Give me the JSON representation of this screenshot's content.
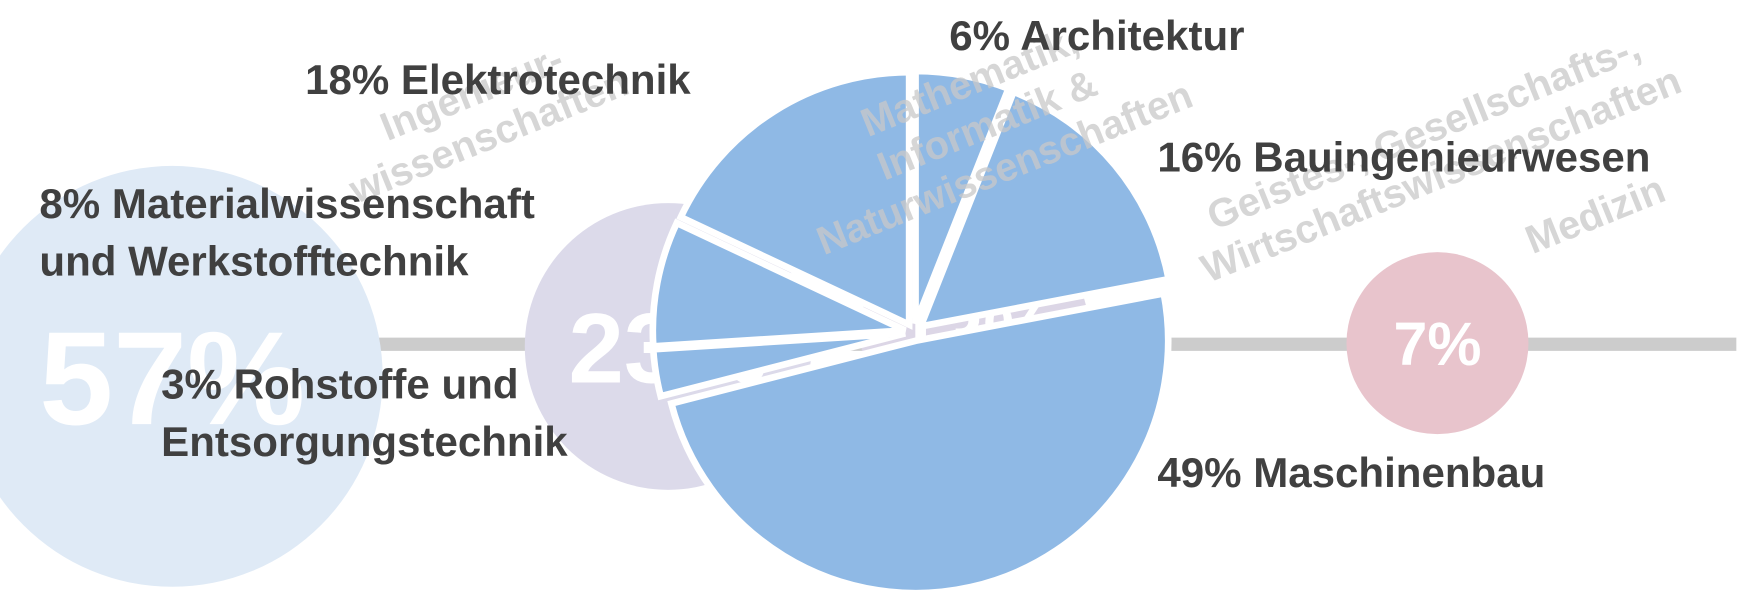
{
  "chart_data": {
    "type": "pie",
    "labels": [
      [
        "6% Architektur"
      ],
      [
        "16% Bauingenieurwesen"
      ],
      [
        "49% Maschinenbau"
      ],
      [
        "3% Rohstoffe und",
        "Entsorgungstechnik"
      ],
      [
        "8% Materialwissenschaft",
        "und Werkstofftechnik"
      ],
      [
        "18% Elektrotechnik"
      ]
    ],
    "values": [
      6,
      16,
      49,
      3,
      8,
      18
    ],
    "color": "#8fb9e5",
    "groups": [
      {
        "name": [
          "Ingenieur-",
          "wissenschaften"
        ],
        "value": 57,
        "value_label": "57%",
        "color": "#dfeaf6"
      },
      {
        "name": [
          "Mathematik,",
          "Informatik &",
          "Naturwissenschaften"
        ],
        "value": 23,
        "value_label": "23%",
        "color": "#dcdaea"
      },
      {
        "name": [
          "Geistes-, Gesellschafts-,",
          "Wirtschaftswissenschaften"
        ],
        "value": 13,
        "value_label": "13%",
        "color": "#dcd6e6"
      },
      {
        "name": [
          "Medizin"
        ],
        "value": 7,
        "value_label": "7%",
        "color": "#e8c4cc"
      }
    ]
  }
}
